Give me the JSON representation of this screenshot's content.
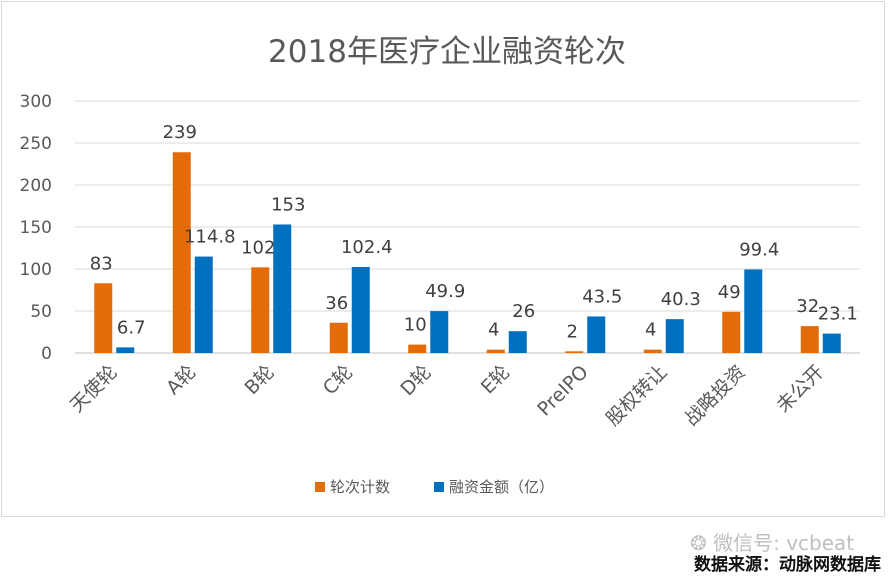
{
  "chart_data": {
    "type": "bar",
    "title": "2018年医疗企业融资轮次",
    "categories": [
      "天使轮",
      "A轮",
      "B轮",
      "C轮",
      "D轮",
      "E轮",
      "PreIPO",
      "股权转让",
      "战略投资",
      "未公开"
    ],
    "series": [
      {
        "name": "轮次计数",
        "color": "#E36C09",
        "values": [
          83,
          239,
          102,
          36,
          10,
          4,
          2,
          4,
          49,
          32
        ]
      },
      {
        "name": "融资金额（亿）",
        "color": "#0070C0",
        "values": [
          6.7,
          114.8,
          153,
          102.4,
          49.9,
          26,
          43.5,
          40.3,
          99.4,
          23.1
        ]
      }
    ],
    "data_labels": [
      [
        "83",
        "239",
        "102",
        "36",
        "10",
        "4",
        "2",
        "4",
        "49",
        "32"
      ],
      [
        "6.7",
        "114.8",
        "153",
        "102.4",
        "49.9",
        "26",
        "43.5",
        "40.3",
        "99.4",
        "23.1"
      ]
    ],
    "y_ticks": [
      0,
      50,
      100,
      150,
      200,
      250,
      300
    ],
    "ylim": [
      0,
      300
    ],
    "grid": true,
    "legend": "bottom",
    "xlabel": "",
    "ylabel": ""
  },
  "watermark": "微信号: vcbeat",
  "source_note": "数据来源：动脉网数据库"
}
